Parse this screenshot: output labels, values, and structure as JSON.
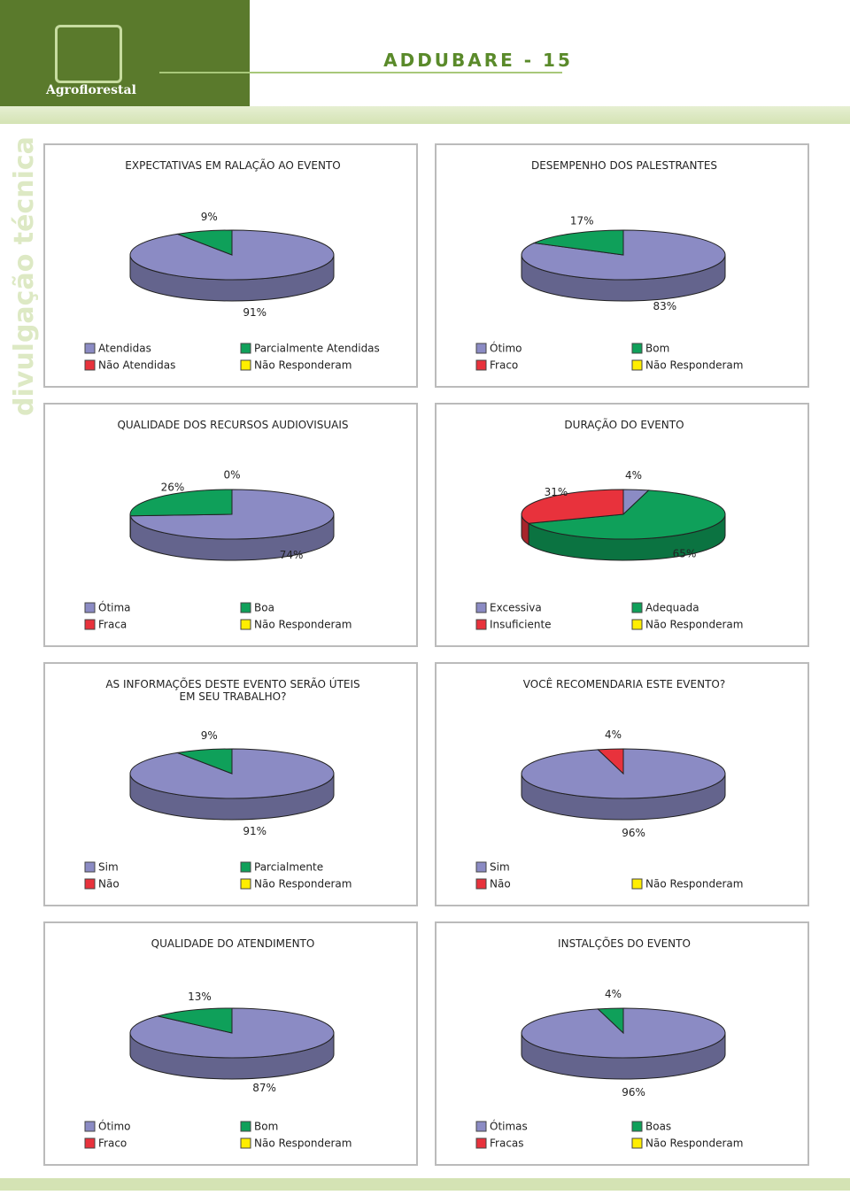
{
  "header": {
    "logo": "Agroflorestal",
    "title": "ADDUBARE - 15",
    "side": "divulgação técnica"
  },
  "chart_data": [
    {
      "type": "pie",
      "title": "EXPECTATIVAS EM RALAÇÃO AO EVENTO",
      "categories": [
        "Atendidas",
        "Parcialmente Atendidas",
        "Não Atendidas",
        "Não Responderam"
      ],
      "values": [
        91,
        9,
        null,
        null
      ],
      "value_labels": [
        "91%",
        "9%",
        null,
        null
      ],
      "colors": [
        "#8b8bc4",
        "#0fa05a",
        "#e8323c",
        "#ffee00"
      ]
    },
    {
      "type": "pie",
      "title": "DESEMPENHO DOS PALESTRANTES",
      "categories": [
        "Ótimo",
        "Bom",
        "Fraco",
        "Não Responderam"
      ],
      "values": [
        83,
        17,
        null,
        null
      ],
      "value_labels": [
        "83%",
        "17%",
        null,
        null
      ],
      "colors": [
        "#8b8bc4",
        "#0fa05a",
        "#e8323c",
        "#ffee00"
      ]
    },
    {
      "type": "pie",
      "title": "QUALIDADE DOS RECURSOS AUDIOVISUAIS",
      "categories": [
        "Ótima",
        "Boa",
        "Fraca",
        "Não Responderam"
      ],
      "values": [
        74,
        26,
        0,
        null
      ],
      "value_labels": [
        "74%",
        "26%",
        "0%",
        null
      ],
      "colors": [
        "#8b8bc4",
        "#0fa05a",
        "#e8323c",
        "#ffee00"
      ]
    },
    {
      "type": "pie",
      "title": "DURAÇÃO DO EVENTO",
      "categories": [
        "Excessiva",
        "Adequada",
        "Insuficiente",
        "Não Responderam"
      ],
      "values": [
        4,
        65,
        31,
        null
      ],
      "value_labels": [
        "4%",
        "65%",
        "31%",
        null
      ],
      "colors": [
        "#8b8bc4",
        "#0fa05a",
        "#e8323c",
        "#ffee00"
      ]
    },
    {
      "type": "pie",
      "title": "AS INFORMAÇÕES DESTE EVENTO SERÃO ÚTEIS EM SEU TRABALHO?",
      "categories": [
        "Sim",
        "Parcialmente",
        "Não",
        "Não Responderam"
      ],
      "values": [
        91,
        9,
        null,
        null
      ],
      "value_labels": [
        "91%",
        "9%",
        null,
        null
      ],
      "colors": [
        "#8b8bc4",
        "#0fa05a",
        "#e8323c",
        "#ffee00"
      ]
    },
    {
      "type": "pie",
      "title": "VOCÊ RECOMENDARIA ESTE EVENTO?",
      "categories": [
        "Sim",
        "Não",
        "Não Responderam"
      ],
      "values": [
        96,
        4,
        null
      ],
      "value_labels": [
        "96%",
        "4%",
        null
      ],
      "colors": [
        "#8b8bc4",
        "#e8323c",
        "#ffee00"
      ]
    },
    {
      "type": "pie",
      "title": "QUALIDADE DO ATENDIMENTO",
      "categories": [
        "Ótimo",
        "Bom",
        "Fraco",
        "Não Responderam"
      ],
      "values": [
        87,
        13,
        null,
        null
      ],
      "value_labels": [
        "87%",
        "13%",
        null,
        null
      ],
      "colors": [
        "#8b8bc4",
        "#0fa05a",
        "#e8323c",
        "#ffee00"
      ]
    },
    {
      "type": "pie",
      "title": "INSTALÇÕES DO EVENTO",
      "categories": [
        "Ótimas",
        "Boas",
        "Fracas",
        "Não Responderam"
      ],
      "values": [
        96,
        4,
        null,
        null
      ],
      "value_labels": [
        "96%",
        "4%",
        null,
        null
      ],
      "colors": [
        "#8b8bc4",
        "#0fa05a",
        "#e8323c",
        "#ffee00"
      ]
    }
  ]
}
